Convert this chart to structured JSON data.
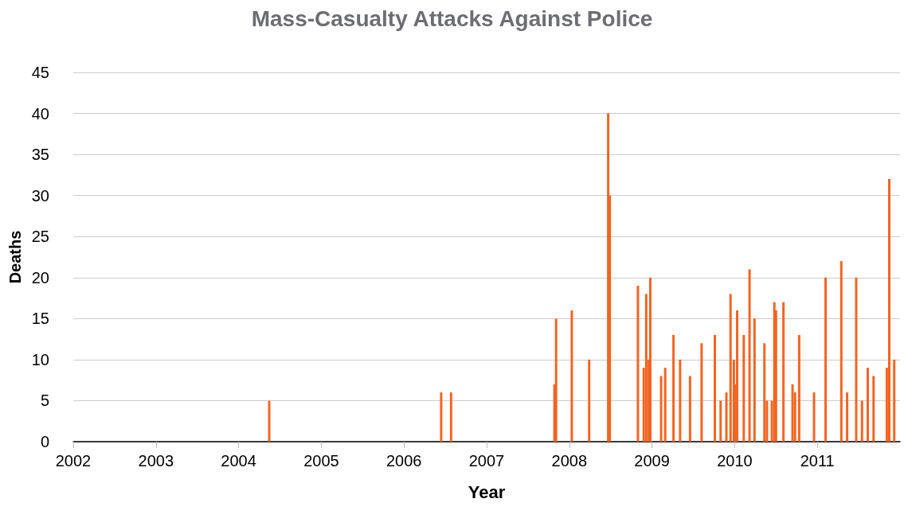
{
  "chart_data": {
    "type": "bar",
    "title": "Mass-Casualty Attacks Against Police",
    "xlabel": "Year",
    "ylabel": "Deaths",
    "x": [
      2004.37,
      2006.45,
      2006.57,
      2007.82,
      2007.84,
      2008.03,
      2008.24,
      2008.47,
      2008.49,
      2008.83,
      2008.9,
      2008.93,
      2008.96,
      2008.98,
      2009.11,
      2009.16,
      2009.26,
      2009.34,
      2009.46,
      2009.6,
      2009.76,
      2009.83,
      2009.9,
      2009.95,
      2009.99,
      2010.01,
      2010.03,
      2010.11,
      2010.18,
      2010.24,
      2010.36,
      2010.39,
      2010.45,
      2010.48,
      2010.5,
      2010.59,
      2010.7,
      2010.73,
      2010.78,
      2010.96,
      2011.1,
      2011.29,
      2011.36,
      2011.47,
      2011.54,
      2011.61,
      2011.68,
      2011.84,
      2011.87,
      2011.93
    ],
    "values": [
      5,
      6,
      6,
      7,
      15,
      16,
      10,
      40,
      30,
      19,
      9,
      18,
      10,
      20,
      8,
      9,
      13,
      10,
      8,
      12,
      13,
      5,
      6,
      18,
      10,
      7,
      16,
      13,
      21,
      15,
      12,
      5,
      5,
      17,
      16,
      17,
      7,
      6,
      13,
      6,
      20,
      22,
      6,
      20,
      5,
      9,
      8,
      9,
      32,
      10
    ],
    "color": "#f26522",
    "xlim": [
      2002,
      2012
    ],
    "xticks": [
      2002,
      2003,
      2004,
      2005,
      2006,
      2007,
      2008,
      2009,
      2010,
      2011
    ],
    "ylim": [
      0,
      45
    ],
    "yticks": [
      0,
      5,
      10,
      15,
      20,
      25,
      30,
      35,
      40,
      45
    ],
    "grid": "y"
  }
}
